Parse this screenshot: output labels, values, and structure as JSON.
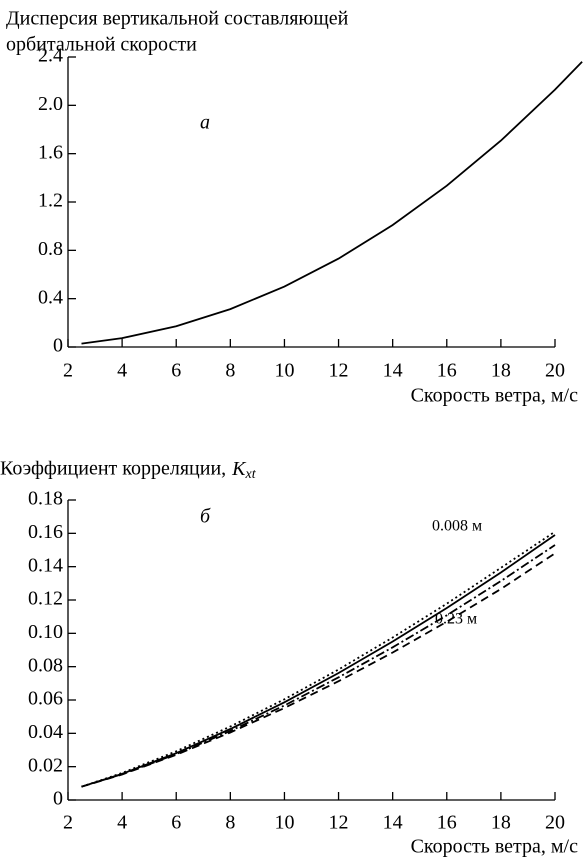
{
  "chart_data": [
    {
      "type": "line",
      "title": [
        "Дисперсия вертикальной составляющей",
        "орбитальной скорости"
      ],
      "x_label": "Скорость ветра, м/с",
      "annotations": [
        "а"
      ],
      "x": [
        2.5,
        4,
        6,
        8,
        10,
        12,
        14,
        16,
        18,
        20,
        21
      ],
      "series": [
        {
          "color": "#000000",
          "style": "solid",
          "values": [
            0.028,
            0.074,
            0.172,
            0.314,
            0.5,
            0.732,
            1.01,
            1.335,
            1.708,
            2.13,
            2.36
          ]
        }
      ],
      "xlim": [
        2,
        20
      ],
      "xticks": [
        2,
        4,
        6,
        8,
        10,
        12,
        14,
        16,
        18,
        20
      ],
      "ylim": [
        0,
        2.4
      ],
      "yticks": [
        0,
        0.4,
        0.8,
        1.2,
        1.6,
        {
          "value": 2,
          "label": "2.0"
        },
        2.4
      ]
    },
    {
      "type": "line",
      "title": [
        "Коэффициент корреляции,"
      ],
      "title_symbol": "K",
      "title_subscript": "xt",
      "x_label": "Скорость ветра, м/с",
      "annotations": [
        "б"
      ],
      "x": [
        2.5,
        4,
        6,
        8,
        10,
        12,
        14,
        16,
        18,
        20
      ],
      "series": [
        {
          "name": "0.008 м",
          "color": "#000000",
          "style": "dotted",
          "values": [
            0.008,
            0.0162,
            0.0292,
            0.0441,
            0.0604,
            0.0783,
            0.0975,
            0.1178,
            0.1393,
            0.161
          ]
        },
        {
          "color": "#000000",
          "style": "solid",
          "values": [
            0.008,
            0.0157,
            0.0281,
            0.0426,
            0.0586,
            0.0762,
            0.0951,
            0.1152,
            0.1365,
            0.159
          ]
        },
        {
          "color": "#000000",
          "style": "dashdot",
          "values": [
            0.008,
            0.0155,
            0.0275,
            0.0414,
            0.0567,
            0.0736,
            0.0916,
            0.1108,
            0.1314,
            0.153
          ]
        },
        {
          "name": "0.23 м",
          "color": "#000000",
          "style": "dashed",
          "values": [
            0.008,
            0.0153,
            0.0271,
            0.0405,
            0.0552,
            0.0713,
            0.0885,
            0.107,
            0.1266,
            0.148
          ]
        }
      ],
      "xlim": [
        2,
        20
      ],
      "xticks": [
        2,
        4,
        6,
        8,
        10,
        12,
        14,
        16,
        18,
        20
      ],
      "ylim": [
        0,
        0.18
      ],
      "yticks": [
        0,
        0.02,
        0.04,
        0.06,
        0.08,
        {
          "value": 0.1,
          "label": "0.10"
        },
        0.12,
        0.14,
        0.16,
        0.18
      ]
    }
  ]
}
